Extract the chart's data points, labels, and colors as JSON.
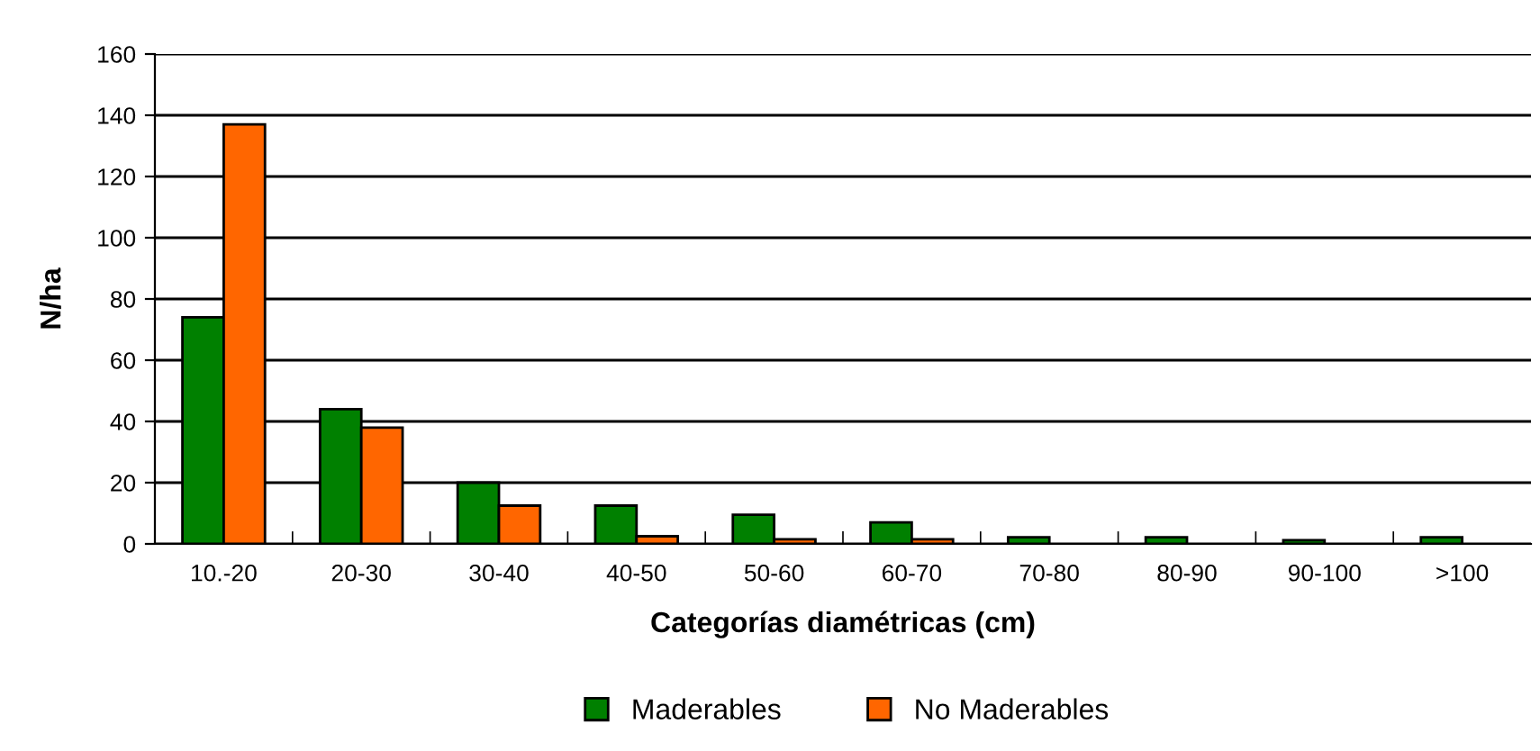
{
  "chart_data": {
    "type": "bar",
    "xlabel": "Categorías diamétricas (cm)",
    "ylabel": "N/ha",
    "categories": [
      "10.-20",
      "20-30",
      "30-40",
      "40-50",
      "50-60",
      "60-70",
      "70-80",
      "80-90",
      "90-100",
      ">100"
    ],
    "series": [
      {
        "name": "Maderables",
        "color": "#008000",
        "values": [
          74,
          44,
          20,
          12.5,
          9.5,
          7,
          2.2,
          2.2,
          1.2,
          2.2
        ]
      },
      {
        "name": "No Maderables",
        "color": "#ff6600",
        "values": [
          137,
          38,
          12.5,
          2.5,
          1.5,
          1.5,
          null,
          null,
          null,
          null
        ]
      }
    ],
    "ylim": [
      0,
      160
    ],
    "yticks": [
      0,
      20,
      40,
      60,
      80,
      100,
      120,
      140,
      160
    ],
    "grid": "y",
    "legend": "bottom"
  }
}
